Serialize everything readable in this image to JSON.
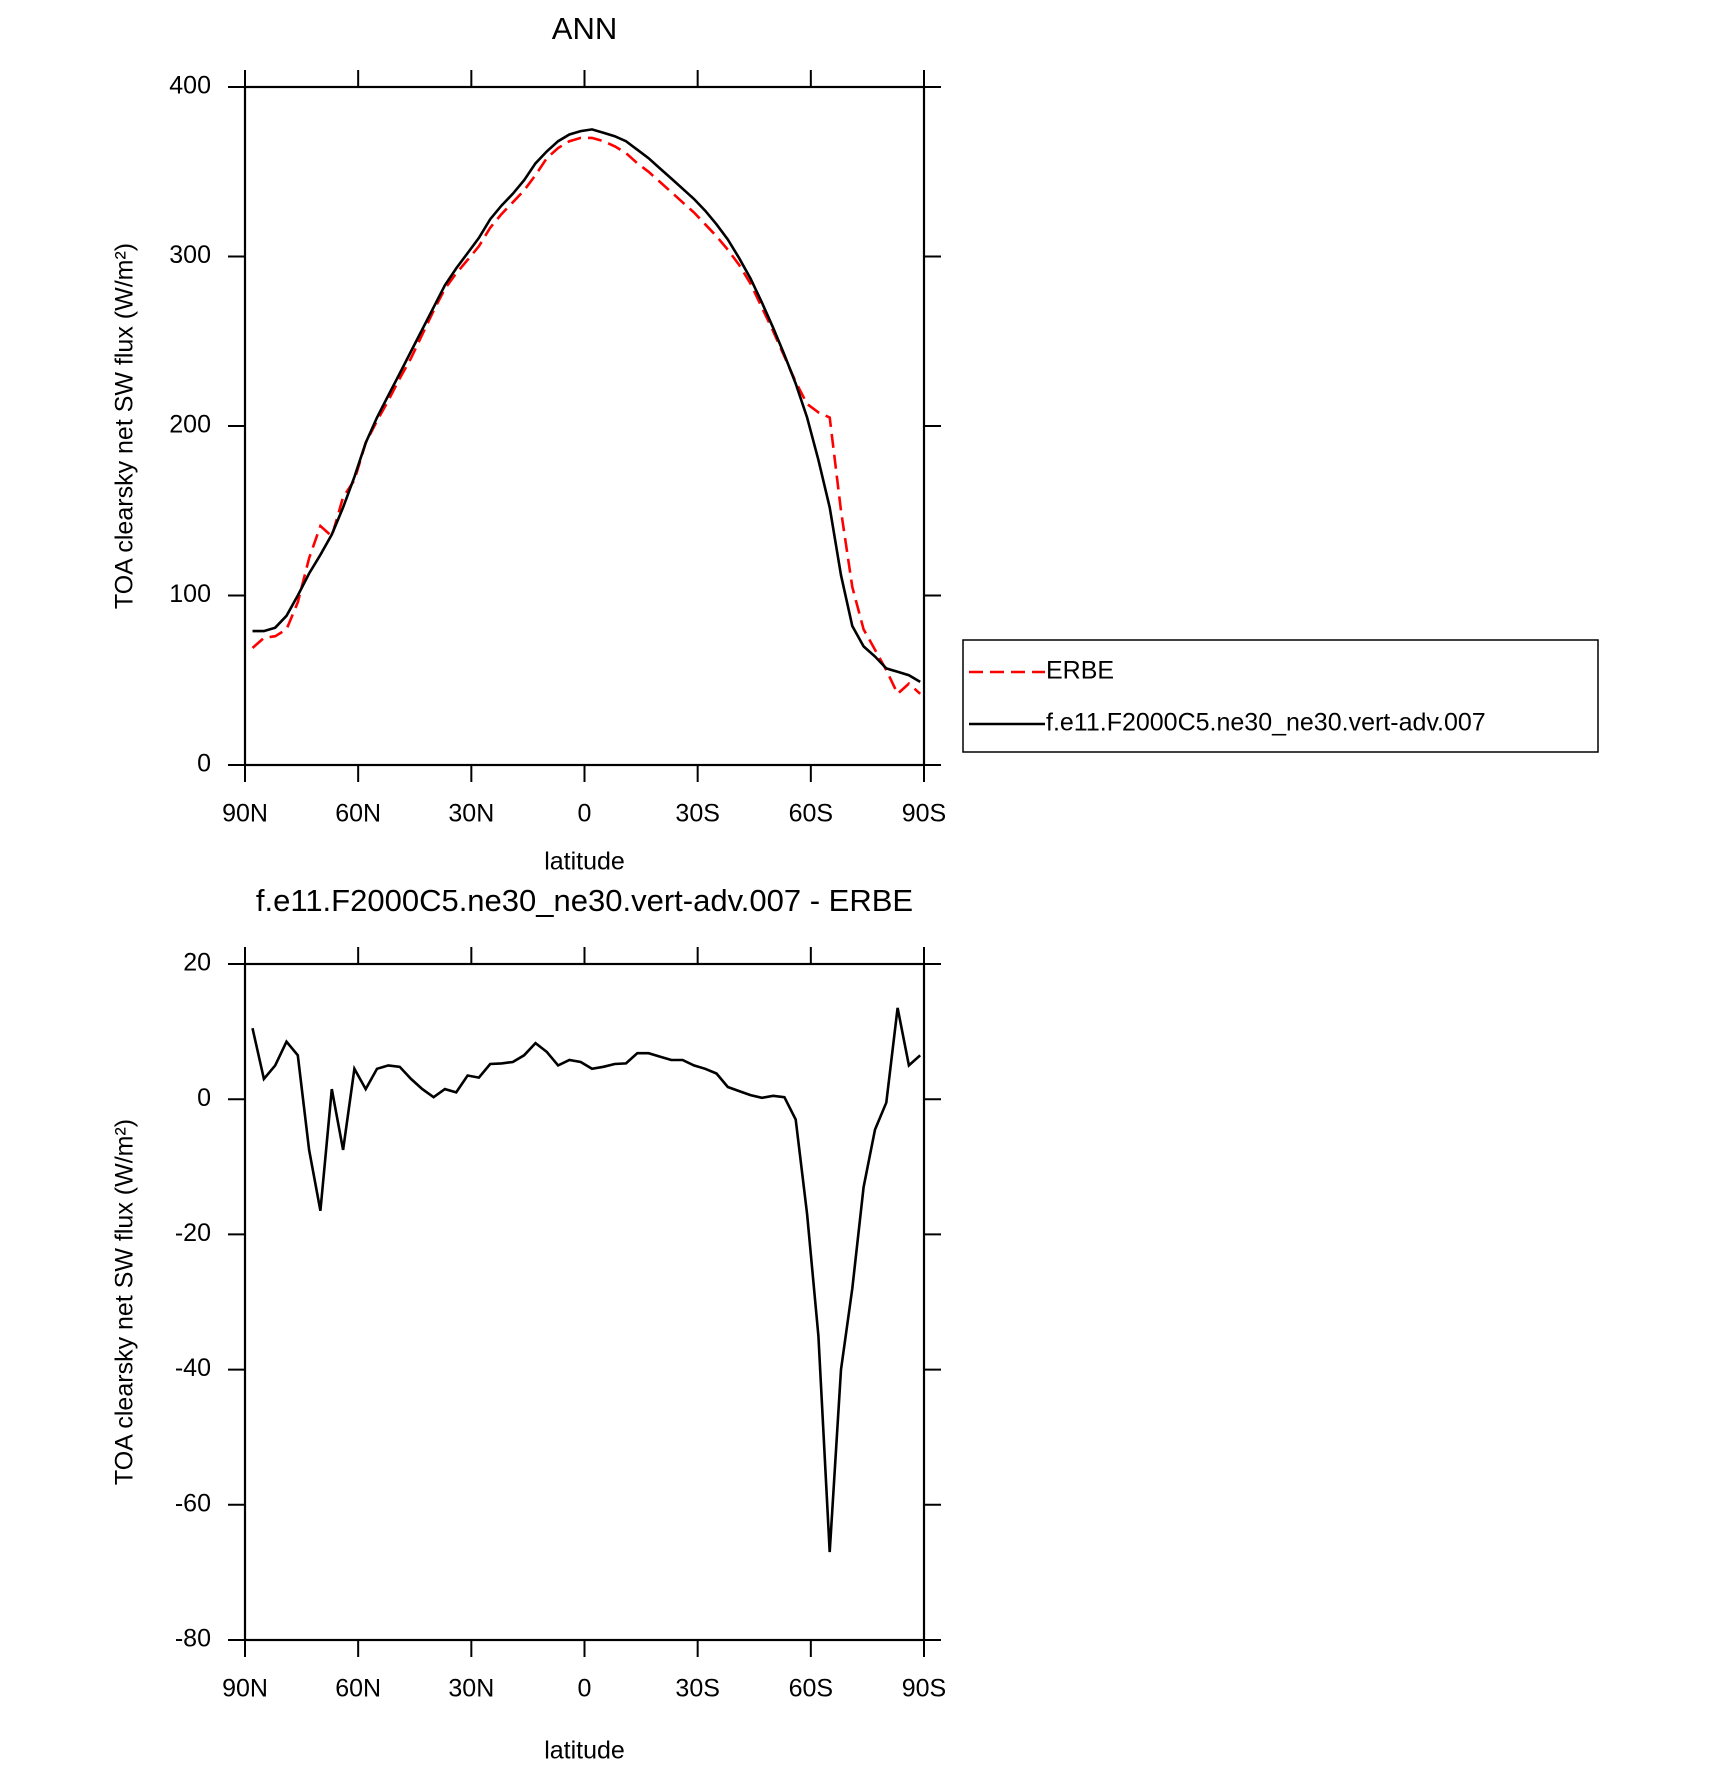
{
  "chart_data": [
    {
      "type": "line",
      "title": "ANN",
      "xlabel": "latitude",
      "ylabel": "TOA clearsky net SW flux (W/m²)",
      "x": [
        88,
        85,
        82,
        79,
        76,
        73,
        70,
        67,
        64,
        61,
        58,
        55,
        52,
        49,
        46,
        43,
        40,
        37,
        34,
        31,
        28,
        25,
        22,
        19,
        16,
        13,
        10,
        7,
        4,
        1,
        -2,
        -5,
        -8,
        -11,
        -14,
        -17,
        -20,
        -23,
        -26,
        -29,
        -32,
        -35,
        -38,
        -41,
        -44,
        -47,
        -50,
        -53,
        -56,
        -59,
        -62,
        -65,
        -68,
        -71,
        -74,
        -77,
        -80,
        -83,
        -86,
        -89
      ],
      "series": [
        {
          "name": "ERBE",
          "color": "#ff0000",
          "linestyle": "dashed",
          "values": [
            69,
            75,
            76,
            80,
            96,
            122,
            141,
            135,
            158,
            168,
            190,
            203,
            215,
            228,
            240,
            254,
            268,
            281,
            290,
            298,
            306,
            317,
            325,
            332,
            339,
            348,
            358,
            364,
            368,
            370,
            370,
            368,
            365,
            361,
            355,
            350,
            344,
            338,
            332,
            326,
            319,
            312,
            304,
            295,
            284,
            270,
            256,
            241,
            226,
            213,
            208,
            205,
            150,
            105,
            80,
            68,
            56,
            42,
            48,
            42
          ]
        },
        {
          "name": "f.e11.F2000C5.ne30_ne30.vert-adv.007",
          "color": "#000000",
          "linestyle": "solid",
          "values": [
            79,
            79,
            81,
            88,
            100,
            113,
            124,
            136,
            152,
            170,
            190,
            205,
            218,
            231,
            244,
            257,
            270,
            283,
            293,
            302,
            311,
            322,
            330,
            337,
            345,
            355,
            362,
            368,
            372,
            374,
            375,
            373,
            371,
            368,
            363,
            358,
            352,
            346,
            340,
            334,
            327,
            319,
            310,
            299,
            287,
            273,
            258,
            242,
            225,
            205,
            180,
            152,
            112,
            82,
            70,
            64,
            57,
            55,
            53,
            49
          ]
        }
      ],
      "xlim": [
        90,
        -90
      ],
      "xticks": [
        {
          "value": 90,
          "label": "90N"
        },
        {
          "value": 60,
          "label": "60N"
        },
        {
          "value": 30,
          "label": "30N"
        },
        0,
        {
          "value": -30,
          "label": "30S"
        },
        {
          "value": -60,
          "label": "60S"
        },
        {
          "value": -90,
          "label": "90S"
        }
      ],
      "ylim": [
        0,
        400
      ],
      "yticks": [
        0,
        100,
        200,
        300,
        400
      ],
      "legend": "right"
    },
    {
      "type": "line",
      "title": "f.e11.F2000C5.ne30_ne30.vert-adv.007 - ERBE",
      "xlabel": "latitude",
      "ylabel": "TOA clearsky net SW flux (W/m²)",
      "x": [
        88,
        85,
        82,
        79,
        76,
        73,
        70,
        67,
        64,
        61,
        58,
        55,
        52,
        49,
        46,
        43,
        40,
        37,
        34,
        31,
        28,
        25,
        22,
        19,
        16,
        13,
        10,
        7,
        4,
        1,
        -2,
        -5,
        -8,
        -11,
        -14,
        -17,
        -20,
        -23,
        -26,
        -29,
        -32,
        -35,
        -38,
        -41,
        -44,
        -47,
        -50,
        -53,
        -56,
        -59,
        -62,
        -65,
        -68,
        -71,
        -74,
        -77,
        -80,
        -83,
        -86,
        -89
      ],
      "series": [
        {
          "color": "#000000",
          "linestyle": "solid",
          "values": [
            10.5,
            3,
            5,
            8.5,
            6.5,
            -7.5,
            -16.5,
            1.5,
            -7.5,
            4.5,
            1.5,
            4.5,
            5,
            4.8,
            3,
            1.5,
            0.3,
            1.5,
            1,
            3.5,
            3.2,
            5.2,
            5.3,
            5.5,
            6.5,
            8.3,
            7,
            5,
            5.8,
            5.5,
            4.5,
            4.8,
            5.2,
            5.3,
            6.8,
            6.8,
            6.3,
            5.8,
            5.8,
            5,
            4.5,
            3.8,
            1.8,
            1.2,
            0.6,
            0.2,
            0.5,
            0.3,
            -3,
            -17,
            -35,
            -67,
            -40,
            -28,
            -13,
            -4.5,
            -0.5,
            13.5,
            5,
            6.5
          ]
        }
      ],
      "xlim": [
        90,
        -90
      ],
      "xticks": [
        {
          "value": 90,
          "label": "90N"
        },
        {
          "value": 60,
          "label": "60N"
        },
        {
          "value": 30,
          "label": "30N"
        },
        0,
        {
          "value": -30,
          "label": "30S"
        },
        {
          "value": -60,
          "label": "60S"
        },
        {
          "value": -90,
          "label": "90S"
        }
      ],
      "ylim": [
        -80,
        20
      ],
      "yticks": [
        -80,
        -60,
        -40,
        -20,
        0,
        20
      ]
    }
  ]
}
